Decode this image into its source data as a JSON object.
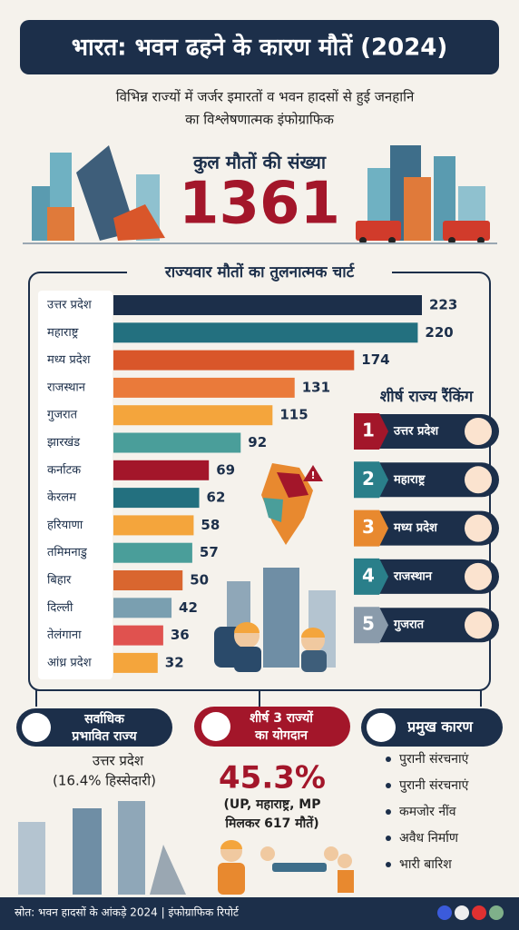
{
  "header": {
    "title": "भारत: भवन ढहने के कारण मौतें (2024)",
    "subtitle": [
      "विभिन्न राज्यों में जर्जर इमारतों व भवन हादसों से हुई जनहानि",
      "का विश्लेषणात्मक इंफोग्राफिक"
    ]
  },
  "total": {
    "label": "कुल मौतों की संख्या",
    "value": 1361
  },
  "chart_data": {
    "type": "bar",
    "orientation": "horizontal",
    "title": "राज्यवार मौतों का तुलनात्मक चार्ट",
    "categories": [
      "उत्तर प्रदेश",
      "महाराष्ट्र",
      "मध्य प्रदेश",
      "राजस्थान",
      "गुजरात",
      "झारखंड",
      "कर्नाटक",
      "केरलम",
      "हरियाणा",
      "तमिमनाडु",
      "बिहार",
      "दिल्ली",
      "तेलंगाना",
      "आंध्र प्रदेश"
    ],
    "values": [
      223,
      220,
      174,
      131,
      115,
      92,
      69,
      62,
      58,
      57,
      50,
      42,
      36,
      32
    ],
    "colors": [
      "#1c2f4a",
      "#23707f",
      "#d9562a",
      "#ea7a3a",
      "#f4a53c",
      "#4a9e9a",
      "#a3162a",
      "#23707f",
      "#f4a53c",
      "#4a9e9a",
      "#d9662f",
      "#7a9fb0",
      "#e0524f",
      "#f4a53c"
    ]
  },
  "ranking": {
    "title": "शीर्ष राज्य रैंकिंग",
    "items": [
      {
        "rank": 1,
        "name": "उत्तर प्रदेश",
        "color": "#a3162a"
      },
      {
        "rank": 2,
        "name": "महाराष्ट्र",
        "color": "#2a7f8a"
      },
      {
        "rank": 3,
        "name": "मध्य प्रदेश",
        "color": "#e8892f"
      },
      {
        "rank": 4,
        "name": "राजस्थान",
        "color": "#2a7f8a"
      },
      {
        "rank": 5,
        "name": "गुजरात",
        "color": "#8a9bab"
      }
    ]
  },
  "panels": {
    "most_affected": {
      "title": [
        "सर्वाधिक",
        "प्रभावित राज्य"
      ],
      "state": "उत्तर प्रदेश",
      "share": "(16.4% हिस्सेदारी)"
    },
    "top3": {
      "title": [
        "शीर्ष 3 राज्यों",
        "का योगदान"
      ],
      "value": "45.3%",
      "note": [
        "(UP, महाराष्ट्र, MP",
        "मिलकर 617 मौतें)"
      ]
    },
    "causes": {
      "title": "प्रमुख कारण",
      "items": [
        "पुरानी संरचनाएं",
        "पुरानी संरचनाएं",
        "कमजोर नींव",
        "अवैध निर्माण",
        "भारी बारिश"
      ]
    }
  },
  "footer": {
    "source": "स्रोत: भवन हादसों के आंकड़े 2024 | इंफोग्राफिक रिपोर्ट"
  }
}
